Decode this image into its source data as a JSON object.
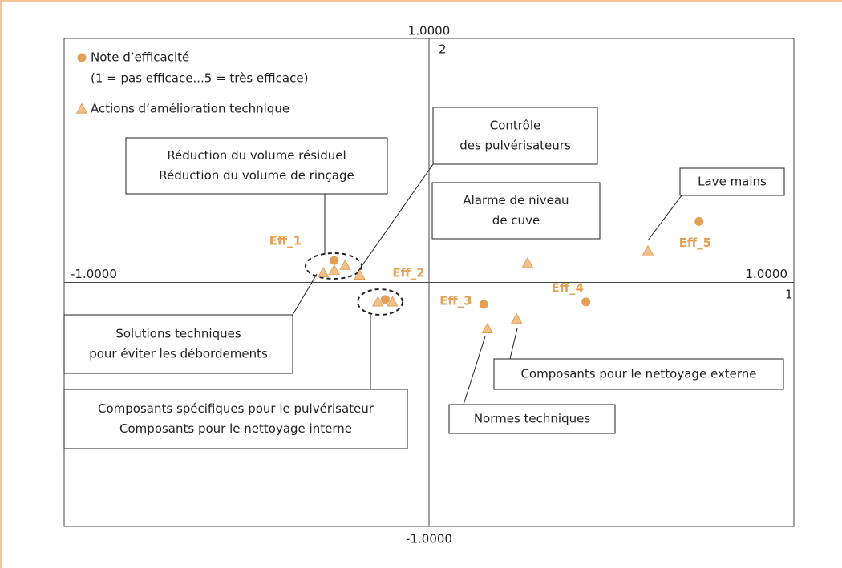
{
  "chart_data": {
    "type": "scatter",
    "series": [
      {
        "name": "Note d’efficacité",
        "marker": "circle",
        "color": "#e3a054",
        "x": [
          -0.26,
          -0.12,
          0.15,
          0.43,
          0.74
        ],
        "y": [
          0.09,
          -0.07,
          -0.09,
          -0.08,
          0.25
        ],
        "labels": [
          "Eff_1",
          "Eff_2",
          "Eff_3",
          "Eff_4",
          "Eff_5"
        ]
      },
      {
        "name": "Actions d’amélioration technique",
        "marker": "triangle",
        "color": "#f3c089",
        "x": [
          -0.29,
          -0.26,
          -0.23,
          -0.19,
          -0.14,
          -0.1,
          0.27,
          0.6,
          0.16,
          0.24
        ],
        "y": [
          0.04,
          0.05,
          0.07,
          0.03,
          -0.08,
          -0.08,
          0.08,
          0.13,
          -0.19,
          -0.15
        ]
      }
    ],
    "legend_note": "(1 = pas efficace...5 = très efficace)",
    "xlim": [
      -1,
      1
    ],
    "ylim": [
      -1,
      1
    ],
    "xticks": [
      {
        "value": -1,
        "label": "-1.0000"
      },
      {
        "value": 1,
        "label": "1.0000"
      }
    ],
    "yticks": [
      {
        "value": -1,
        "label": "-1.0000"
      },
      {
        "value": 1,
        "label": "1.0000"
      }
    ],
    "x_axis_label": "1",
    "y_axis_label": "2",
    "annotations": [
      {
        "lines": [
          "Réduction du volume résiduel",
          "Réduction du volume de rinçage"
        ]
      },
      {
        "lines": [
          "Contrôle",
          "des pulvérisateurs"
        ]
      },
      {
        "lines": [
          "Lave mains"
        ]
      },
      {
        "lines": [
          "Alarme de niveau",
          "de cuve"
        ]
      },
      {
        "lines": [
          "Solutions techniques",
          "pour éviter les débordements"
        ]
      },
      {
        "lines": [
          "Composants spécifiques pour le pulvérisateur",
          "Composants pour le nettoyage interne"
        ]
      },
      {
        "lines": [
          "Composants pour le nettoyage externe"
        ]
      },
      {
        "lines": [
          "Normes techniques"
        ]
      }
    ]
  }
}
